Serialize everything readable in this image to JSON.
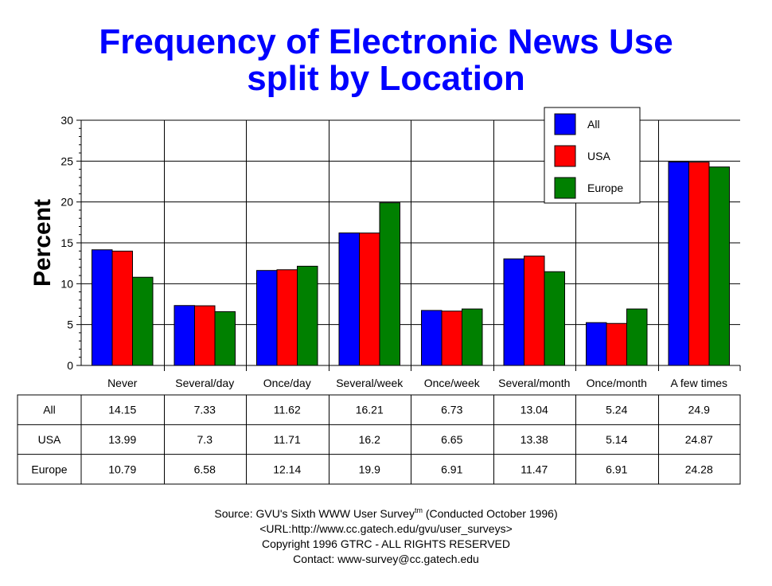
{
  "chart_data": {
    "type": "bar",
    "title": "Frequency of Electronic News Use",
    "subtitle": "split by Location",
    "xlabel": "",
    "ylabel": "Percent",
    "ylim": [
      0,
      30
    ],
    "yticks": [
      0,
      5,
      10,
      15,
      20,
      25,
      30
    ],
    "grid": true,
    "legend_position": "top-right",
    "categories": [
      "Never",
      "Several/day",
      "Once/day",
      "Several/week",
      "Once/week",
      "Several/month",
      "Once/month",
      "A few times"
    ],
    "series": [
      {
        "name": "All",
        "color": "#0000ff",
        "values": [
          14.15,
          7.33,
          11.62,
          16.21,
          6.73,
          13.04,
          5.24,
          24.9
        ]
      },
      {
        "name": "USA",
        "color": "#ff0000",
        "values": [
          13.99,
          7.3,
          11.71,
          16.2,
          6.65,
          13.38,
          5.14,
          24.87
        ]
      },
      {
        "name": "Europe",
        "color": "#008000",
        "values": [
          10.79,
          6.58,
          12.14,
          19.9,
          6.91,
          11.47,
          6.91,
          24.28
        ]
      }
    ],
    "table": {
      "rows": [
        {
          "label": "All",
          "cells": [
            "14.15",
            "7.33",
            "11.62",
            "16.21",
            "6.73",
            "13.04",
            "5.24",
            "24.9"
          ]
        },
        {
          "label": "USA",
          "cells": [
            "13.99",
            "7.3",
            "11.71",
            "16.2",
            "6.65",
            "13.38",
            "5.14",
            "24.87"
          ]
        },
        {
          "label": "Europe",
          "cells": [
            "10.79",
            "6.58",
            "12.14",
            "19.9",
            "6.91",
            "11.47",
            "6.91",
            "24.28"
          ]
        }
      ]
    }
  },
  "footer": {
    "source_prefix": "Source: GVU's Sixth WWW User Survey",
    "source_tm": "tm",
    "source_suffix": "  (Conducted October 1996)",
    "url": "<URL:http://www.cc.gatech.edu/gvu/user_surveys>",
    "copyright": "Copyright 1996 GTRC -  ALL RIGHTS RESERVED",
    "contact": "Contact: www-survey@cc.gatech.edu"
  }
}
